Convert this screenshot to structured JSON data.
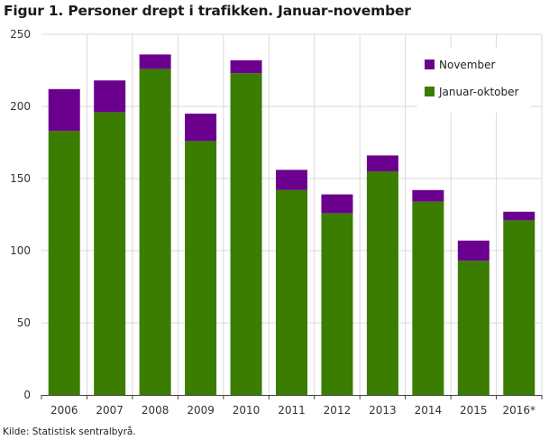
{
  "title": "Figur 1. Personer drept i trafikken. Januar-november",
  "source": "Kilde: Statistisk sentralbyrå.",
  "colors": {
    "november": "#6b008f",
    "januar_oktober": "#3a7d00",
    "grid": "#d9d9d9",
    "axis": "#444444"
  },
  "chart_data": {
    "type": "bar",
    "stacked": true,
    "categories": [
      "2006",
      "2007",
      "2008",
      "2009",
      "2010",
      "2011",
      "2012",
      "2013",
      "2014",
      "2015",
      "2016*"
    ],
    "series": [
      {
        "name": "Januar-oktober",
        "values": [
          183,
          196,
          226,
          176,
          223,
          142,
          126,
          155,
          134,
          93,
          121
        ]
      },
      {
        "name": "November",
        "values": [
          29,
          22,
          10,
          19,
          9,
          14,
          13,
          11,
          8,
          14,
          6
        ]
      }
    ],
    "ylim": [
      0,
      250
    ],
    "yticks": [
      "0",
      "50",
      "100",
      "150",
      "200",
      "250"
    ],
    "grid": true,
    "legend_position": "top-right",
    "legend": [
      "November",
      "Januar-oktober"
    ],
    "xlabel": "",
    "ylabel": ""
  }
}
